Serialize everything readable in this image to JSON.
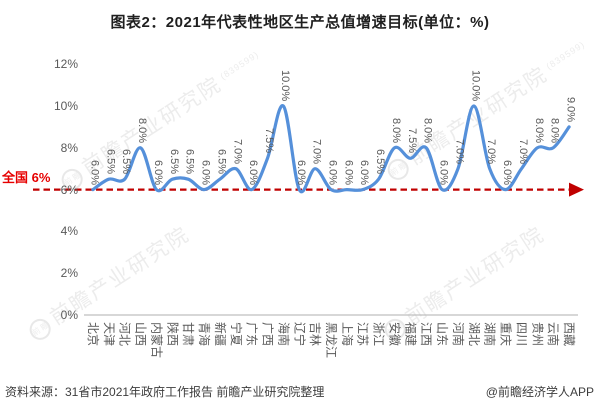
{
  "title": "图表2：2021年代表性地区生产总值增速目标(单位：%)",
  "chart_data": {
    "type": "line",
    "categories": [
      "北京",
      "天津",
      "河北",
      "山西",
      "内蒙古",
      "陕西",
      "甘肃",
      "青海",
      "新疆",
      "宁夏",
      "广东",
      "广西",
      "海南",
      "辽宁",
      "吉林",
      "黑龙江",
      "上海",
      "江苏",
      "浙江",
      "安徽",
      "福建",
      "江西",
      "山东",
      "河南",
      "湖北",
      "湖南",
      "重庆",
      "四川",
      "贵州",
      "云南",
      "西藏"
    ],
    "values": [
      6.0,
      6.5,
      6.5,
      8.0,
      6.0,
      6.5,
      6.5,
      6.0,
      6.5,
      7.0,
      6.0,
      7.5,
      10.0,
      6.0,
      7.0,
      6.0,
      6.0,
      6.0,
      6.5,
      8.0,
      7.5,
      8.0,
      6.0,
      7.0,
      10.0,
      7.0,
      6.0,
      7.0,
      8.0,
      8.0,
      9.0
    ],
    "data_label_suffix": "%",
    "xlabel": "",
    "ylabel": "",
    "ylim": [
      0,
      12
    ],
    "y_ticks": [
      0,
      2,
      4,
      6,
      8,
      10,
      12
    ],
    "y_tick_suffix": "%",
    "grid": false,
    "legend": "none",
    "smooth": true,
    "line_color": "#5590da",
    "axis_color": "#bfbfbf",
    "label_color": "#595959",
    "reference_line": {
      "label": "全国 6%",
      "value": 6,
      "color": "#c00000",
      "label_color": "#e60000",
      "style": "dashed-arrow"
    }
  },
  "watermark": {
    "text": "前瞻产业研究院",
    "logo_text": "前瞻",
    "code": "(839599)"
  },
  "footer": {
    "source": "资料来源：31省市2021年政府工作报告 前瞻产业研究院整理",
    "credit": "@前瞻经济学人APP"
  }
}
